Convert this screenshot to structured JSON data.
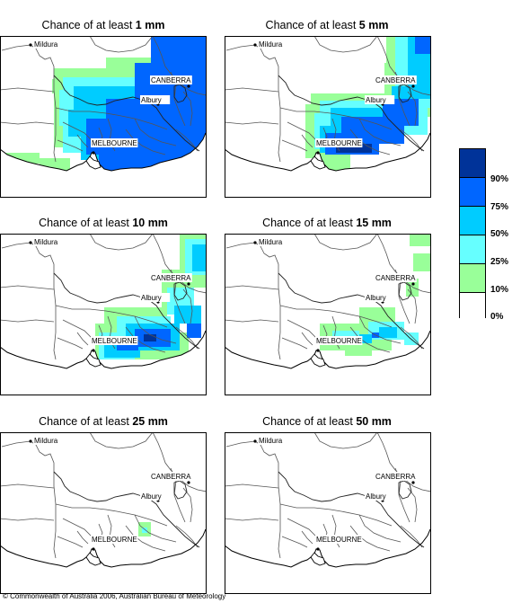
{
  "panels": [
    {
      "prefix": "Chance of at least ",
      "amount": "1 mm"
    },
    {
      "prefix": "Chance of at least ",
      "amount": "5 mm"
    },
    {
      "prefix": "Chance of at least ",
      "amount": "10 mm"
    },
    {
      "prefix": "Chance of at least ",
      "amount": "15 mm"
    },
    {
      "prefix": "Chance of at least ",
      "amount": "25 mm"
    },
    {
      "prefix": "Chance of at least ",
      "amount": "50 mm"
    }
  ],
  "places": {
    "mildura": "Mildura",
    "canberra": "CANBERRA",
    "albury": "Albury",
    "melbourne": "MELBOURNE"
  },
  "legend": {
    "colors": [
      "#003399",
      "#0066ff",
      "#00ccff",
      "#66ffff",
      "#99ff99",
      "#ffffff"
    ],
    "labels": [
      "90%",
      "75%",
      "50%",
      "25%",
      "10%",
      "0%"
    ]
  },
  "copyright": "© Commonwealth of Australia 2006, Australian Bureau of Meteorology"
}
